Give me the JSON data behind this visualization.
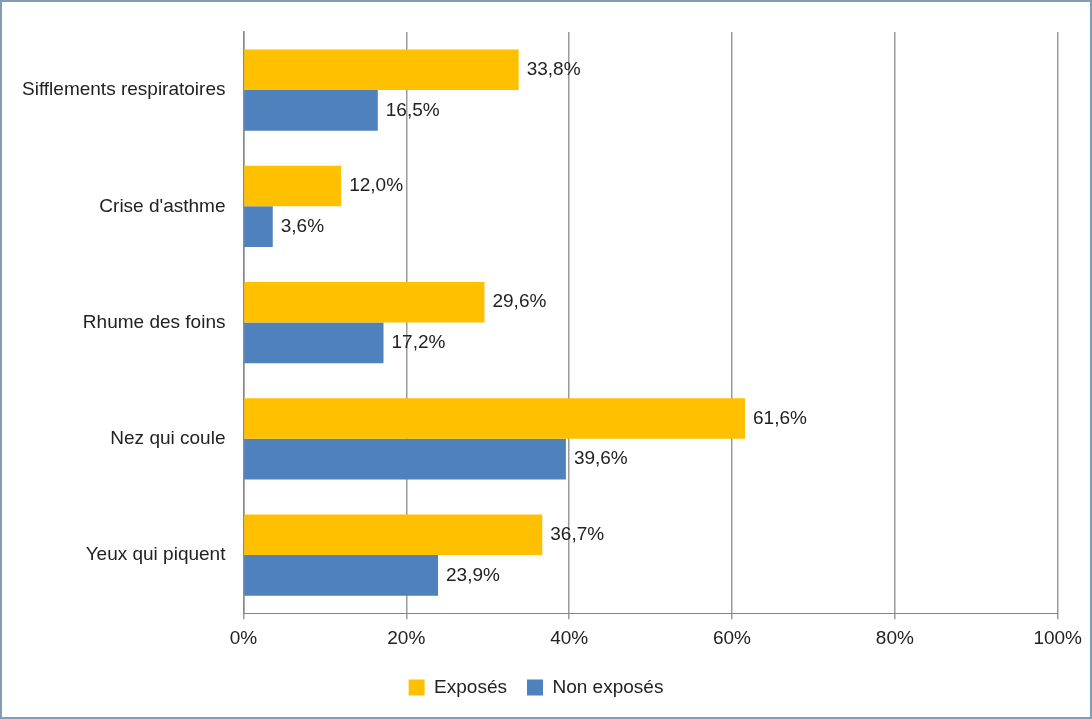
{
  "chart_data": {
    "type": "bar",
    "orientation": "horizontal",
    "categories": [
      "Sifflements respiratoires",
      "Crise d'asthme",
      "Rhume des foins",
      "Nez qui coule",
      "Yeux qui piquent"
    ],
    "series": [
      {
        "name": "Exposés",
        "color": "#ffc000",
        "values": [
          33.8,
          12.0,
          29.6,
          61.6,
          36.7
        ],
        "value_labels": [
          "33,8%",
          "12,0%",
          "29,6%",
          "61,6%",
          "36,7%"
        ]
      },
      {
        "name": "Non exposés",
        "color": "#4f81bd",
        "values": [
          16.5,
          3.6,
          17.2,
          39.6,
          23.9
        ],
        "value_labels": [
          "16,5%",
          "3,6%",
          "17,2%",
          "39,6%",
          "23,9%"
        ]
      }
    ],
    "xlim": [
      0,
      100
    ],
    "xticks": [
      {
        "value": 0,
        "label": "0%"
      },
      {
        "value": 20,
        "label": "20%"
      },
      {
        "value": 40,
        "label": "40%"
      },
      {
        "value": 60,
        "label": "60%"
      },
      {
        "value": 80,
        "label": "80%"
      },
      {
        "value": 100,
        "label": "100%"
      }
    ],
    "grid": "x",
    "legend": "bottom"
  }
}
